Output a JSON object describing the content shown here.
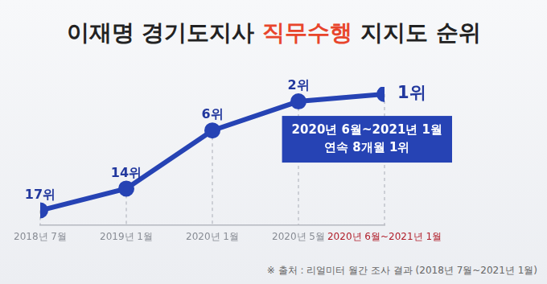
{
  "chart_data": {
    "type": "line",
    "title": "이재명 경기도지사 직무수행 지지도 순위",
    "categories": [
      "2018년 7월",
      "2019년 1월",
      "2020년 1월",
      "2020년 5월",
      "2020년 6월~2021년 1월"
    ],
    "values": [
      17,
      14,
      6,
      2,
      1
    ],
    "value_labels": [
      "17위",
      "14위",
      "6위",
      "2위",
      "1위"
    ],
    "data_labels": true,
    "color": "#2643b4",
    "marker": "circle",
    "ylim": [
      19,
      0
    ],
    "grid": false,
    "tick_labels": "x",
    "annotations": [
      "2020년 6월~2021년 1월",
      "연속 8개월 1위"
    ],
    "note": "※ 출처 : 리얼미터 월간 조사 결과 (2018년 7월~2021년 1월)"
  }
}
